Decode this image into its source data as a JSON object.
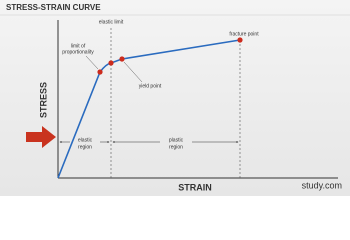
{
  "title": "STRESS-STRAIN CURVE",
  "axes": {
    "y_label": "STRESS",
    "x_label": "STRAIN"
  },
  "points": [
    {
      "label": [
        "limit of",
        "proportionality"
      ]
    },
    {
      "label": [
        "elastic limit"
      ]
    },
    {
      "label": [
        "yield point"
      ]
    },
    {
      "label": [
        "fracture point"
      ]
    }
  ],
  "regions": [
    {
      "label": [
        "elastic",
        "region"
      ]
    },
    {
      "label": [
        "plastic",
        "region"
      ]
    }
  ],
  "watermark": "study.com"
}
